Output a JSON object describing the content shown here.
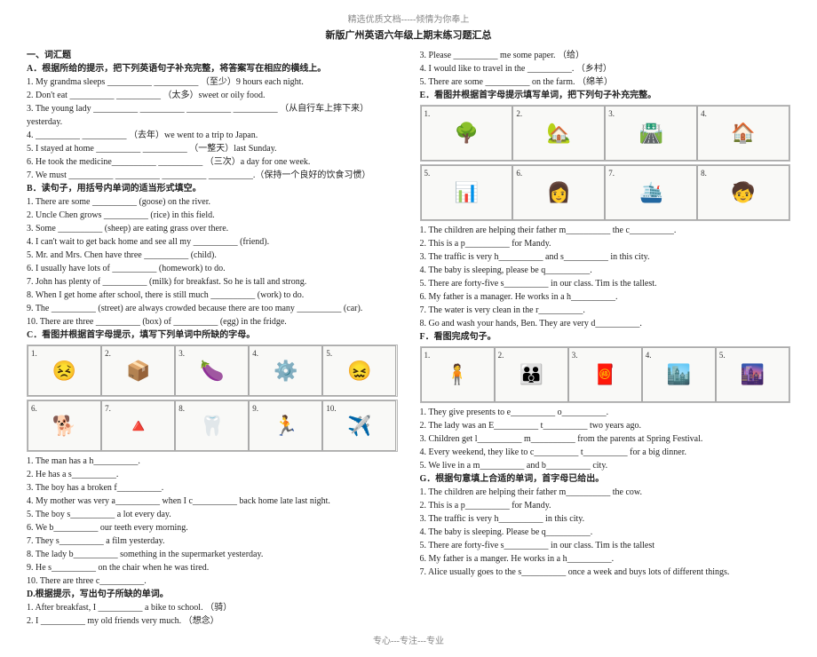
{
  "header_top": "精选优质文档-----倾情为你奉上",
  "title": "新版广州英语六年级上期末练习题汇总",
  "footer": "专心---专注---专业",
  "left": {
    "sec1": "一、词汇题",
    "A_head": "A．根据所给的提示，把下列英语句子补充完整，将答案写在相应的横线上。",
    "A": [
      "1. My grandma sleeps __________ __________ （至少）9 hours each night.",
      "2. Don't eat __________ __________ （太多）sweet or oily food.",
      "3. The young lady __________ __________ __________ __________ （从自行车上摔下来）yesterday.",
      "4. __________ __________ （去年）we went to a trip to Japan.",
      "5. I stayed at home __________ __________ （一整天）last Sunday.",
      "6. He took the medicine__________ __________ （三次）a day for one week.",
      "7. We must __________ __________ __________ __________.（保持一个良好的饮食习惯）"
    ],
    "B_head": "B．读句子，用括号内单词的适当形式填空。",
    "B": [
      "1. There are some __________ (goose) on the river.",
      "2. Uncle Chen grows __________ (rice) in this field.",
      "3. Some __________ (sheep) are eating grass over there.",
      "4. I can't wait to get back home and see all my __________ (friend).",
      "5. Mr. and Mrs. Chen have three __________ (child).",
      "6. I usually have lots of __________ (homework) to do.",
      "7. John has plenty of __________ (milk) for breakfast. So he is tall and strong.",
      "8. When I get home after school, there is still much __________ (work) to do.",
      "9. The __________ (street) are always crowded because there are too many __________ (car).",
      "10. There are three __________ (box) of __________ (egg) in the fridge."
    ],
    "C_head": "C．看图并根据首字母提示，填写下列单词中所缺的字母。",
    "C_icons_row1": [
      "😣",
      "📦",
      "🍆",
      "⚙️",
      "😖"
    ],
    "C_icons_row2": [
      "🐕",
      "🔺",
      "🦷",
      "🏃",
      "✈️"
    ],
    "C_nums_row1": [
      "1.",
      "2.",
      "3.",
      "4.",
      "5."
    ],
    "C_nums_row2": [
      "6.",
      "7.",
      "8.",
      "9.",
      "10."
    ],
    "C": [
      "1. The man has a h__________.",
      "2. He has a s__________.",
      "3. The boy has a broken f__________.",
      "4. My mother was very a__________ when I c__________ back home late last night.",
      "5. The boy s__________ a lot every day.",
      "6. We b__________ our teeth every morning.",
      "7. They s__________ a film yesterday.",
      "8. The lady b__________ something in the supermarket yesterday.",
      "9. He s__________ on the chair when he was tired.",
      "10. There are three c__________."
    ],
    "D_head": "D.根据提示，写出句子所缺的单词。",
    "D": [
      "1. After breakfast, I __________ a bike to school. （骑）",
      "2. I __________ my old friends very much. （想念）"
    ]
  },
  "right": {
    "D_cont": [
      "3. Please __________ me some paper. （给）",
      "4. I would like to travel in the __________. （乡村）",
      "5. There are some __________ on the farm. （绵羊）"
    ],
    "E_head": "E．看图并根据首字母提示填写单词，把下列句子补充完整。",
    "E_icons_row1": [
      "🌳",
      "🏡",
      "🛣️",
      "🏠"
    ],
    "E_icons_row2": [
      "📊",
      "👩",
      "🛳️",
      "🧒"
    ],
    "E_nums_row1": [
      "1.",
      "2.",
      "3.",
      "4."
    ],
    "E_nums_row2": [
      "5.",
      "6.",
      "7.",
      "8."
    ],
    "E": [
      "1. The children are helping their father m__________ the c__________.",
      "2. This is a p__________ for Mandy.",
      "3. The traffic is very h__________ and s__________ in this city.",
      "4. The baby is sleeping, please be q__________.",
      "5. There are forty-five s__________ in our class. Tim is the tallest.",
      "6. My father is a manager. He works in a h__________.",
      "7. The water is very clean in the r__________.",
      "8. Go and wash your hands, Ben. They are very d__________."
    ],
    "F_head": "F．看图完成句子。",
    "F_icons": [
      "🧍",
      "👪",
      "🧧",
      "🏙️",
      "🌆"
    ],
    "F_nums": [
      "1.",
      "2.",
      "3.",
      "4.",
      "5."
    ],
    "F": [
      "1. They give presents to e__________ o__________.",
      "2. The lady was an E__________ t__________ two years ago.",
      "3. Children get l__________ m__________ from the parents at Spring Festival.",
      "4. Every weekend, they like to c__________ t__________ for a big dinner.",
      "5. We live in a m__________ and b__________ city."
    ],
    "G_head": "G．根据句意填上合适的单词，首字母已给出。",
    "G": [
      "1. The children are helping their father m__________ the cow.",
      "2. This is a p__________ for Mandy.",
      "3. The traffic is very h__________ in this city.",
      "4. The baby is sleeping. Please be q__________.",
      "5. There are forty-five s__________ in our class. Tim is the tallest",
      "6. My father is a manger. He works in a h__________.",
      "7. Alice usually goes to the s__________ once a week and buys lots of different things."
    ]
  }
}
